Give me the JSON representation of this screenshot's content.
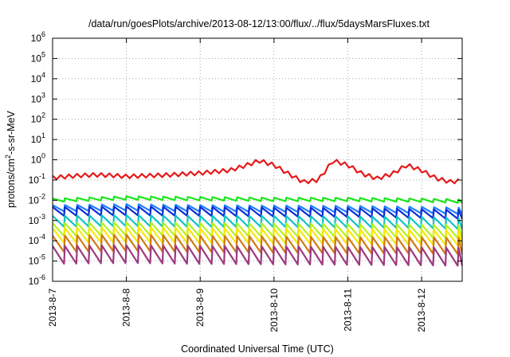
{
  "chart_data": {
    "type": "line",
    "title": "/data/run/goesPlots/archive/2013-08-12/13:00/flux/../flux/5daysMarsFluxes.txt",
    "xlabel": "Coordinated Universal Time (UTC)",
    "ylabel": "protons/cm2-s-sr-MeV",
    "ylabel_parts": {
      "base": "protons/cm",
      "sup": "2",
      "rest": "-s-sr-MeV"
    },
    "yscale": "log",
    "ylim_exponents": [
      -6,
      6
    ],
    "y_ticks": [
      {
        "base": "10",
        "exp": "-6"
      },
      {
        "base": "10",
        "exp": "-5"
      },
      {
        "base": "10",
        "exp": "-4"
      },
      {
        "base": "10",
        "exp": "-3"
      },
      {
        "base": "10",
        "exp": "-2"
      },
      {
        "base": "10",
        "exp": "-1"
      },
      {
        "base": "10",
        "exp": "0"
      },
      {
        "base": "10",
        "exp": "1"
      },
      {
        "base": "10",
        "exp": "2"
      },
      {
        "base": "10",
        "exp": "3"
      },
      {
        "base": "10",
        "exp": "4"
      },
      {
        "base": "10",
        "exp": "5"
      },
      {
        "base": "10",
        "exp": "6"
      }
    ],
    "x_ticks": [
      "2013-8-7",
      "2013-8-8",
      "2013-8-9",
      "2013-8-10",
      "2013-8-11",
      "2013-8-12"
    ],
    "xlim_days": [
      0,
      5.55
    ],
    "grid": true,
    "legend": "none",
    "series": [
      {
        "color": "#e6191a",
        "x": [
          0,
          0.2,
          0.4,
          0.6,
          0.8,
          1,
          1.2,
          1.4,
          1.6,
          1.8,
          2,
          2.2,
          2.4,
          2.6,
          2.8,
          3,
          3.2,
          3.4,
          3.6,
          3.8,
          4,
          4.2,
          4.4,
          4.6,
          4.8,
          5,
          5.2,
          5.4,
          5.55
        ],
        "y": [
          0.13,
          0.15,
          0.17,
          0.18,
          0.17,
          0.15,
          0.16,
          0.17,
          0.18,
          0.2,
          0.22,
          0.26,
          0.3,
          0.5,
          0.9,
          0.55,
          0.2,
          0.08,
          0.1,
          0.9,
          0.55,
          0.2,
          0.12,
          0.2,
          0.55,
          0.3,
          0.12,
          0.08,
          0.1
        ]
      },
      {
        "color": "#19e619",
        "x": [
          0,
          1,
          2,
          3,
          4,
          5,
          5.55
        ],
        "y": [
          0.01,
          0.013,
          0.012,
          0.011,
          0.011,
          0.01,
          0.009
        ]
      },
      {
        "color": "#1f7fff",
        "x": [
          0,
          1,
          2,
          3,
          4,
          5,
          5.55
        ],
        "y": [
          0.004,
          0.0045,
          0.004,
          0.0038,
          0.0037,
          0.0033,
          0.003
        ]
      },
      {
        "color": "#0a2fd6",
        "x": [
          0,
          1,
          2,
          3,
          4,
          5,
          5.55
        ],
        "y": [
          0.0028,
          0.003,
          0.0028,
          0.0026,
          0.0025,
          0.0022,
          0.002
        ]
      },
      {
        "color": "#11c4c4",
        "x": [
          0,
          1,
          2,
          3,
          4,
          5,
          5.55
        ],
        "y": [
          0.0009,
          0.001,
          0.0009,
          0.0009,
          0.00085,
          0.0008,
          0.0007
        ]
      },
      {
        "color": "#b8f020",
        "x": [
          0,
          1,
          2,
          3,
          4,
          5,
          5.55
        ],
        "y": [
          0.00035,
          0.0004,
          0.00036,
          0.00034,
          0.00032,
          0.0003,
          0.00028
        ]
      },
      {
        "color": "#f5e90a",
        "x": [
          0,
          1,
          2,
          3,
          4,
          5,
          5.55
        ],
        "y": [
          0.00018,
          0.0002,
          0.00018,
          0.00017,
          0.00016,
          0.00015,
          0.00014
        ]
      },
      {
        "color": "#d07a12",
        "x": [
          0,
          1,
          2,
          3,
          4,
          5,
          5.55
        ],
        "y": [
          7e-05,
          8e-05,
          7e-05,
          6.5e-05,
          6e-05,
          6e-05,
          5.5e-05
        ]
      },
      {
        "color": "#9c3a80",
        "x": [
          0,
          1,
          2,
          3,
          4,
          5,
          5.55
        ],
        "y": [
          2e-05,
          2.2e-05,
          2e-05,
          1.9e-05,
          1.8e-05,
          1.7e-05,
          1.6e-05
        ]
      }
    ]
  }
}
